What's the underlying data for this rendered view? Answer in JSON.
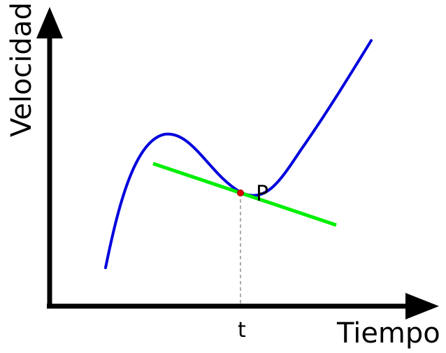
{
  "diagram": {
    "x_axis_label": "Tiempo",
    "y_axis_label": "Velocidad",
    "point_label": "P",
    "tick_label": "t",
    "colors": {
      "axes": "#000000",
      "curve": "#0000dd",
      "tangent": "#00ee00",
      "point": "#dd0000",
      "guide": "#777777"
    }
  }
}
